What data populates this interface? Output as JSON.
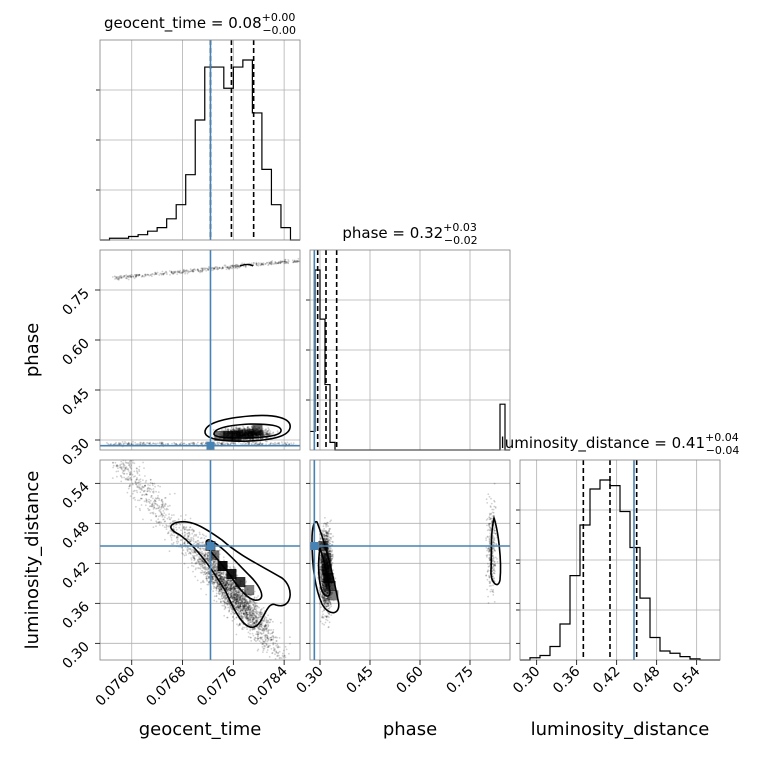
{
  "chart_data": {
    "type": "corner",
    "parameters": [
      "geocent_time",
      "phase",
      "luminosity_distance"
    ],
    "titles": {
      "geocent_time": {
        "name": "geocent_time",
        "value": "0.08",
        "plus": "+0.00",
        "minus": "−0.00"
      },
      "phase": {
        "name": "phase",
        "value": "0.32",
        "plus": "+0.03",
        "minus": "−0.02"
      },
      "luminosity_distance": {
        "name": "luminosity_distance",
        "value": "0.41",
        "plus": "+0.04",
        "minus": "−0.04"
      }
    },
    "ranges": {
      "geocent_time": [
        0.0755,
        0.07865
      ],
      "phase": [
        0.27,
        0.87
      ],
      "luminosity_distance": [
        0.275,
        0.575
      ]
    },
    "ticks": {
      "geocent_time": [
        "0.0760",
        "0.0768",
        "0.0776",
        "0.0784"
      ],
      "phase": [
        "0.30",
        "0.45",
        "0.60",
        "0.75"
      ],
      "luminosity_distance_x": [
        "0.30",
        "0.36",
        "0.42",
        "0.48",
        "0.54"
      ],
      "phase_y": [
        "0.30",
        "0.45",
        "0.60",
        "0.75"
      ],
      "luminosity_distance_y": [
        "0.30",
        "0.36",
        "0.42",
        "0.48",
        "0.54"
      ]
    },
    "truths": {
      "geocent_time": 0.07724,
      "phase": 0.283,
      "luminosity_distance": 0.446
    },
    "quantiles": {
      "geocent_time": [
        0.07724,
        0.07757,
        0.07792
      ],
      "phase": [
        0.293,
        0.318,
        0.35
      ],
      "luminosity_distance": [
        0.37,
        0.41,
        0.45
      ]
    },
    "histograms": {
      "geocent_time": {
        "bins": [
          0.0755,
          0.07565,
          0.0758,
          0.07595,
          0.0761,
          0.07625,
          0.0764,
          0.07655,
          0.0767,
          0.07685,
          0.077,
          0.07715,
          0.0773,
          0.07745,
          0.0776,
          0.07775,
          0.0779,
          0.07805,
          0.0782,
          0.07835,
          0.0785,
          0.07865
        ],
        "counts": [
          0,
          1,
          1,
          2,
          3,
          5,
          7,
          12,
          20,
          37,
          68,
          98,
          98,
          86,
          98,
          102,
          72,
          40,
          20,
          7,
          0
        ]
      },
      "phase": {
        "bins": [
          0.27,
          0.285,
          0.3,
          0.315,
          0.33,
          0.345,
          0.36,
          0.375,
          0.39,
          0.405,
          0.42,
          0.435,
          0.45,
          0.465,
          0.48,
          0.495,
          0.51,
          0.525,
          0.54,
          0.555,
          0.57,
          0.585,
          0.6,
          0.615,
          0.63,
          0.645,
          0.66,
          0.675,
          0.69,
          0.705,
          0.72,
          0.735,
          0.75,
          0.765,
          0.78,
          0.795,
          0.81,
          0.825,
          0.84,
          0.855,
          0.87
        ],
        "counts": [
          17,
          165,
          120,
          60,
          7,
          0,
          0,
          0,
          0,
          0,
          0,
          0,
          0,
          0,
          0,
          0,
          0,
          0,
          0,
          0,
          0,
          0,
          0,
          0,
          0,
          0,
          0,
          0,
          0,
          0,
          0,
          0,
          0,
          0,
          0,
          0,
          0,
          0,
          42,
          0
        ]
      },
      "luminosity_distance": {
        "bins": [
          0.275,
          0.29,
          0.305,
          0.32,
          0.335,
          0.35,
          0.365,
          0.38,
          0.395,
          0.41,
          0.425,
          0.44,
          0.455,
          0.47,
          0.485,
          0.5,
          0.515,
          0.53,
          0.545,
          0.56,
          0.575
        ],
        "counts": [
          0,
          2,
          4,
          12,
          32,
          75,
          120,
          152,
          160,
          155,
          132,
          100,
          55,
          20,
          8,
          6,
          3,
          1,
          0,
          0
        ]
      }
    },
    "colors": {
      "truth": "#4682b4",
      "hist": "#000000",
      "quantile": "#000000",
      "grid": "#b0b0b0"
    }
  }
}
